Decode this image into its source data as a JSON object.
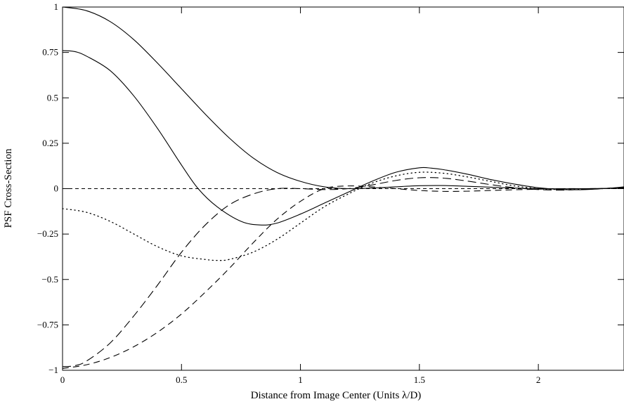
{
  "chart_data": {
    "type": "line",
    "title": "",
    "xlabel": "Distance from Image Center (Units  λ/D)",
    "ylabel": "PSF Cross-Section",
    "xlim": [
      0,
      2.36
    ],
    "ylim": [
      -1,
      1
    ],
    "grid": false,
    "legend": "none",
    "x_ticks": [
      0,
      0.5,
      1,
      1.5,
      2
    ],
    "x_tick_labels": [
      "0",
      "0.5",
      "1",
      "1.5",
      "2"
    ],
    "y_ticks": [
      1,
      0.75,
      0.5,
      0.25,
      0,
      -0.25,
      -0.5,
      -0.75,
      -1
    ],
    "y_tick_labels": [
      "1",
      "0.75",
      "0.5",
      "0.25",
      "0",
      "−0.25",
      "−0.5",
      "−0.75",
      "−1"
    ],
    "series": [
      {
        "style": "solid",
        "x": [
          0,
          0.1,
          0.2,
          0.3,
          0.4,
          0.5,
          0.6,
          0.7,
          0.8,
          0.9,
          1.0,
          1.1,
          1.2,
          1.3,
          1.4,
          1.5,
          1.6,
          1.7,
          1.8,
          1.9,
          2.0,
          2.1,
          2.2,
          2.36
        ],
        "values": [
          1.0,
          0.98,
          0.92,
          0.82,
          0.69,
          0.55,
          0.41,
          0.28,
          0.17,
          0.09,
          0.04,
          0.01,
          0.0,
          0.003,
          0.01,
          0.016,
          0.017,
          0.013,
          0.008,
          0.003,
          0.0,
          -0.001,
          0.0,
          0.003
        ]
      },
      {
        "style": "solid",
        "x": [
          0,
          0.05,
          0.1,
          0.2,
          0.3,
          0.4,
          0.5,
          0.57,
          0.65,
          0.75,
          0.83,
          0.9,
          1.0,
          1.1,
          1.2,
          1.3,
          1.4,
          1.5,
          1.55,
          1.6,
          1.7,
          1.8,
          1.9,
          2.0,
          2.1,
          2.2,
          2.3,
          2.36
        ],
        "values": [
          0.76,
          0.755,
          0.73,
          0.65,
          0.51,
          0.33,
          0.13,
          0.0,
          -0.1,
          -0.18,
          -0.2,
          -0.19,
          -0.14,
          -0.08,
          -0.02,
          0.04,
          0.09,
          0.115,
          0.113,
          0.105,
          0.08,
          0.05,
          0.025,
          0.005,
          -0.005,
          -0.005,
          0.003,
          0.01
        ]
      },
      {
        "style": "dotted",
        "x": [
          0,
          0.1,
          0.2,
          0.3,
          0.4,
          0.5,
          0.6,
          0.65,
          0.7,
          0.8,
          0.9,
          1.0,
          1.1,
          1.2,
          1.3,
          1.4,
          1.5,
          1.6,
          1.7,
          1.8,
          1.9,
          2.0,
          2.1,
          2.2,
          2.36
        ],
        "values": [
          -0.11,
          -0.13,
          -0.18,
          -0.25,
          -0.32,
          -0.37,
          -0.39,
          -0.395,
          -0.39,
          -0.35,
          -0.28,
          -0.19,
          -0.1,
          -0.03,
          0.03,
          0.07,
          0.09,
          0.085,
          0.065,
          0.04,
          0.015,
          0.0,
          -0.005,
          -0.003,
          0.005
        ]
      },
      {
        "style": "dashed-long",
        "x": [
          0,
          0.05,
          0.1,
          0.2,
          0.3,
          0.4,
          0.5,
          0.6,
          0.7,
          0.8,
          0.9,
          1.0,
          1.1,
          1.2,
          1.3,
          1.4,
          1.5,
          1.6,
          1.7,
          1.8,
          1.9,
          2.0,
          2.1,
          2.2,
          2.36
        ],
        "values": [
          -0.98,
          -0.975,
          -0.95,
          -0.85,
          -0.7,
          -0.53,
          -0.35,
          -0.2,
          -0.09,
          -0.03,
          0.0,
          0.0,
          -0.005,
          0.0,
          0.02,
          0.045,
          0.06,
          0.058,
          0.042,
          0.022,
          0.005,
          -0.005,
          -0.008,
          -0.003,
          0.006
        ]
      },
      {
        "style": "dashed",
        "x": [
          0,
          0.1,
          0.2,
          0.3,
          0.4,
          0.5,
          0.6,
          0.7,
          0.8,
          0.9,
          1.0,
          1.1,
          1.2,
          1.3,
          1.4,
          1.5,
          1.6,
          1.7,
          1.8,
          1.9,
          2.0,
          2.1,
          2.2,
          2.36
        ],
        "values": [
          -0.99,
          -0.97,
          -0.93,
          -0.87,
          -0.79,
          -0.69,
          -0.57,
          -0.44,
          -0.3,
          -0.17,
          -0.07,
          0.0,
          0.015,
          0.01,
          0.0,
          -0.01,
          -0.015,
          -0.014,
          -0.01,
          -0.006,
          -0.003,
          0.0,
          0.0,
          0.001
        ]
      },
      {
        "style": "baseline-dashed",
        "x": [
          0,
          2.36
        ],
        "values": [
          0,
          0
        ]
      }
    ]
  }
}
